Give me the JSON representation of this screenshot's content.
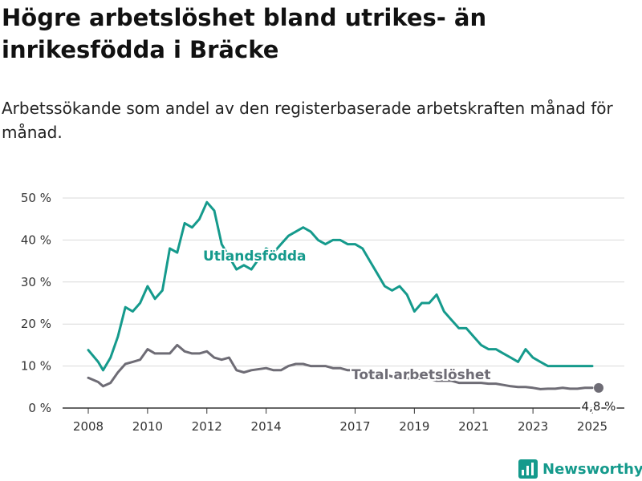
{
  "header": {
    "title": "Högre arbetslöshet bland utrikes- än inrikesfödda i Bräcke",
    "subtitle": "Arbetssökande som andel av den registerbaserade arbetskraften månad för månad."
  },
  "brand": {
    "name": "Newsworthy"
  },
  "colors": {
    "utlandsfodda": "#159a8c",
    "total": "#6e6c75",
    "grid": "#d9d9d9",
    "axis": "#333333"
  },
  "chart_data": {
    "type": "line",
    "title": "Högre arbetslöshet bland utrikes- än inrikesfödda i Bräcke",
    "subtitle": "Arbetssökande som andel av den registerbaserade arbetskraften månad för månad.",
    "xlim": [
      "2008-01",
      "2025-01"
    ],
    "ylim": [
      0,
      50
    ],
    "y_ticks": [
      0,
      10,
      20,
      30,
      40,
      50
    ],
    "y_tick_labels": [
      "0 %",
      "10 %",
      "20 %",
      "30 %",
      "40 %",
      "50 %"
    ],
    "x_ticks": [
      "2008-01",
      "2010-01",
      "2012-01",
      "2014-01",
      "2017-01",
      "2019-01",
      "2021-01",
      "2023-01",
      "2025-01"
    ],
    "x_tick_labels": [
      "2008",
      "2010",
      "2012",
      "2014",
      "2017",
      "2019",
      "2021",
      "2023",
      "2025"
    ],
    "grid": true,
    "series": [
      {
        "name": "Utlandsfödda",
        "color": "#159a8c",
        "x": [
          "2008-01",
          "2008-05",
          "2008-07",
          "2008-10",
          "2009-01",
          "2009-04",
          "2009-07",
          "2009-10",
          "2010-01",
          "2010-04",
          "2010-07",
          "2010-10",
          "2011-01",
          "2011-04",
          "2011-07",
          "2011-10",
          "2012-01",
          "2012-04",
          "2012-07",
          "2012-10",
          "2013-01",
          "2013-04",
          "2013-07",
          "2014-01",
          "2014-04",
          "2014-07",
          "2014-10",
          "2015-01",
          "2015-04",
          "2015-07",
          "2015-10",
          "2016-01",
          "2016-04",
          "2016-07",
          "2016-10",
          "2017-01",
          "2017-04",
          "2017-07",
          "2017-10",
          "2018-01",
          "2018-04",
          "2018-07",
          "2018-10",
          "2019-01",
          "2019-04",
          "2019-07",
          "2019-10",
          "2020-01",
          "2020-04",
          "2020-07",
          "2020-10",
          "2021-01",
          "2021-04",
          "2021-07",
          "2021-10",
          "2022-01",
          "2022-04",
          "2022-07",
          "2022-10",
          "2023-01",
          "2023-04",
          "2023-07",
          "2023-10",
          "2024-01",
          "2024-04",
          "2024-07",
          "2024-10",
          "2025-01"
        ],
        "y": [
          13.8,
          11,
          9,
          12,
          17,
          24,
          23,
          25,
          29,
          26,
          28,
          38,
          37,
          44,
          43,
          45,
          49,
          47,
          39,
          36,
          33,
          34,
          33,
          38,
          37,
          39,
          41,
          42,
          43,
          42,
          40,
          39,
          40,
          40,
          39,
          39,
          38,
          35,
          32,
          29,
          28,
          29,
          27,
          23,
          25,
          25,
          27,
          23,
          21,
          19,
          19,
          17,
          15,
          14,
          14,
          13,
          12,
          11,
          14,
          12,
          11,
          10,
          10,
          10,
          10,
          10,
          10,
          10
        ]
      },
      {
        "name": "Total arbetslöshet",
        "color": "#6e6c75",
        "x": [
          "2008-01",
          "2008-05",
          "2008-07",
          "2008-10",
          "2009-01",
          "2009-04",
          "2009-07",
          "2009-10",
          "2010-01",
          "2010-04",
          "2010-07",
          "2010-10",
          "2011-01",
          "2011-04",
          "2011-07",
          "2011-10",
          "2012-01",
          "2012-04",
          "2012-07",
          "2012-10",
          "2013-01",
          "2013-04",
          "2013-07",
          "2014-01",
          "2014-04",
          "2014-07",
          "2014-10",
          "2015-01",
          "2015-04",
          "2015-07",
          "2015-10",
          "2016-01",
          "2016-04",
          "2016-07",
          "2016-10",
          "2017-01",
          "2017-04",
          "2017-07",
          "2017-10",
          "2018-01",
          "2018-04",
          "2018-07",
          "2018-10",
          "2019-01",
          "2019-04",
          "2019-07",
          "2019-10",
          "2020-01",
          "2020-04",
          "2020-07",
          "2020-10",
          "2021-01",
          "2021-04",
          "2021-07",
          "2021-10",
          "2022-01",
          "2022-04",
          "2022-07",
          "2022-10",
          "2023-01",
          "2023-04",
          "2023-07",
          "2023-10",
          "2024-01",
          "2024-04",
          "2024-07",
          "2024-10",
          "2025-01"
        ],
        "y": [
          7.2,
          6.2,
          5.2,
          6,
          8.5,
          10.5,
          11,
          11.5,
          14,
          13,
          13,
          13,
          15,
          13.5,
          13,
          13,
          13.5,
          12,
          11.5,
          12,
          9,
          8.5,
          9,
          9.5,
          9,
          9,
          10,
          10.5,
          10.5,
          10,
          10,
          10,
          9.5,
          9.5,
          9,
          9,
          8.5,
          8,
          8,
          8,
          7.5,
          7.5,
          7,
          7,
          7,
          7,
          6.5,
          6.5,
          6.5,
          6,
          6,
          6,
          6,
          5.8,
          5.8,
          5.5,
          5.2,
          5,
          5,
          4.8,
          4.5,
          4.6,
          4.6,
          4.8,
          4.6,
          4.6,
          4.8,
          4.8
        ]
      }
    ],
    "annotations": [
      {
        "series": "Total arbetslöshet",
        "x": "2025-01",
        "y": 4.8,
        "text": "4,8 %"
      }
    ]
  }
}
